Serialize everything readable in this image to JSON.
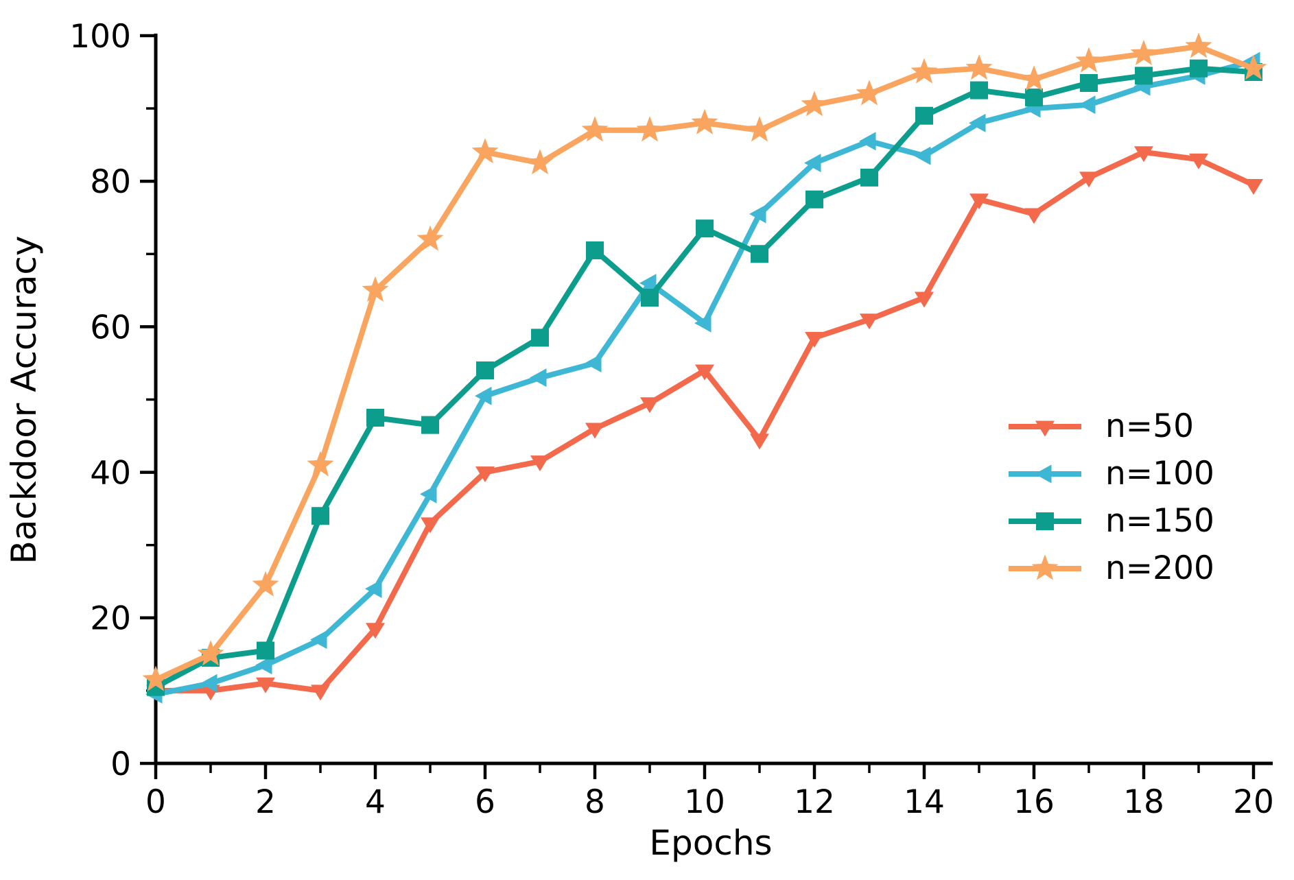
{
  "figure": {
    "background": "#ffffff",
    "text_color": "#000000"
  },
  "chart_data": {
    "type": "line",
    "title": "",
    "xlabel": "Epochs",
    "ylabel": "Backdoor Accuracy",
    "xlim": [
      0,
      20
    ],
    "ylim": [
      0,
      100
    ],
    "grid": false,
    "legend_position": "center-right",
    "x": [
      0,
      1,
      2,
      3,
      4,
      5,
      6,
      7,
      8,
      9,
      10,
      11,
      12,
      13,
      14,
      15,
      16,
      17,
      18,
      19,
      20
    ],
    "x_major_ticks": [
      0,
      2,
      4,
      6,
      8,
      10,
      12,
      14,
      16,
      18,
      20
    ],
    "x_minor_ticks": [
      1,
      3,
      5,
      7,
      9,
      11,
      13,
      15,
      17,
      19
    ],
    "y_major_ticks": [
      0,
      20,
      40,
      60,
      80,
      100
    ],
    "y_minor_ticks": [
      10,
      30,
      50,
      70,
      90
    ],
    "series": [
      {
        "name": "n=50",
        "color": "#F3694C",
        "marker": "triangle-down",
        "values": [
          10,
          10,
          11,
          10,
          18.5,
          33,
          40,
          41.5,
          46,
          49.5,
          54,
          44.5,
          58.5,
          61,
          64,
          77.5,
          75.5,
          80.5,
          84,
          83,
          79.5
        ]
      },
      {
        "name": "n=100",
        "color": "#3DB7D3",
        "marker": "triangle-left",
        "values": [
          9.5,
          11,
          13.5,
          17,
          24,
          37,
          50.5,
          53,
          55,
          66,
          60.5,
          75.5,
          82.5,
          85.5,
          83.5,
          88,
          90,
          90.5,
          93,
          94.5,
          96.5
        ]
      },
      {
        "name": "n=150",
        "color": "#0C9D8C",
        "marker": "square",
        "values": [
          10.5,
          14.5,
          15.5,
          34,
          47.5,
          46.5,
          54,
          58.5,
          70.5,
          64,
          73.5,
          70,
          77.5,
          80.5,
          89,
          92.5,
          91.5,
          93.5,
          94.5,
          95.5,
          95
        ]
      },
      {
        "name": "n=200",
        "color": "#F9A55F",
        "marker": "star",
        "values": [
          11.5,
          15,
          24.5,
          41,
          65,
          72,
          84,
          82.5,
          87,
          87,
          88,
          87,
          90.5,
          92,
          95,
          95.5,
          94,
          96.5,
          97.5,
          98.5,
          95.5
        ]
      }
    ]
  }
}
